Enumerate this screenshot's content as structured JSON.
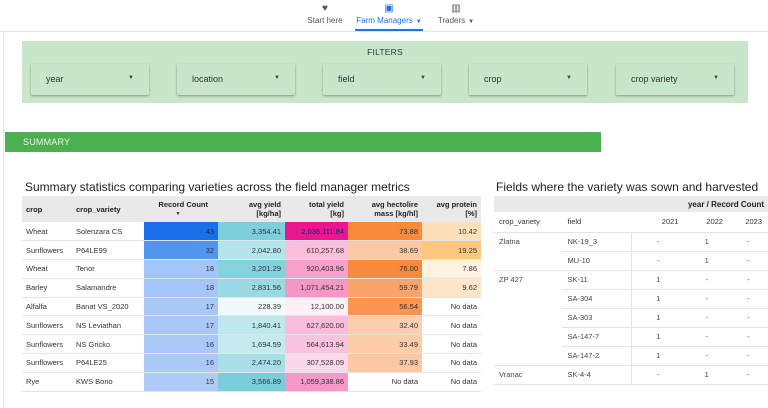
{
  "nav": {
    "items": [
      {
        "label": "Start here",
        "icon": "heart-icon",
        "glyph": "♥",
        "active": false,
        "dropdown": false
      },
      {
        "label": "Farm Managers",
        "icon": "farm-manager-icon",
        "glyph": "▣",
        "active": true,
        "dropdown": true
      },
      {
        "label": "Traders",
        "icon": "bar-chart-icon",
        "glyph": "▥",
        "active": false,
        "dropdown": true
      }
    ],
    "caret": "▼"
  },
  "filters": {
    "title": "FILTERS",
    "arrow": "▼",
    "selects": [
      {
        "label": "year"
      },
      {
        "label": "location"
      },
      {
        "label": "field"
      },
      {
        "label": "crop"
      },
      {
        "label": "crop variety"
      }
    ]
  },
  "summary": {
    "label": "SUMMARY",
    "color": "#4caf50"
  },
  "left_table": {
    "title": "Summary statistics comparing varieties across the field manager metrics",
    "columns": [
      "crop",
      "crop_variety",
      "Record Count",
      "avg yield [kg/ha]",
      "total yield [kg]",
      "avg hectolire mass [kg/hl]",
      "avg protein [%]"
    ],
    "col_lines": [
      [
        "crop"
      ],
      [
        "crop_variety"
      ],
      [
        "Record Count"
      ],
      [
        "avg yield",
        "[kg/ha]"
      ],
      [
        "total yield",
        "[kg]"
      ],
      [
        "avg hectolire",
        "mass [kg/hl]"
      ],
      [
        "avg protein",
        "[%]"
      ]
    ],
    "sort_indicator": "▼",
    "rows": [
      {
        "crop": "Wheat",
        "variety": "Solenzara CS",
        "count": "43",
        "avg_yield": "3,354.41",
        "total_yield": "2,036,111.84",
        "hectolitre": "73.88",
        "protein": "10.42",
        "colors": [
          "#1a6fe8",
          "#7dcfdc",
          "#e8168f",
          "#f98a3c",
          "#ffe0b8"
        ]
      },
      {
        "crop": "Sunflowers",
        "variety": "P64LE99",
        "count": "32",
        "avg_yield": "2,042.80",
        "total_yield": "610,257.68",
        "hectolitre": "38.69",
        "protein": "19.25",
        "colors": [
          "#5294ee",
          "#b5e5ec",
          "#fbbfdc",
          "#fcc9a6",
          "#fdc77e"
        ]
      },
      {
        "crop": "Wheat",
        "variety": "Tenor",
        "count": "18",
        "avg_yield": "3,201.29",
        "total_yield": "920,403.96",
        "hectolitre": "76.00",
        "protein": "7.86",
        "colors": [
          "#a5c5f8",
          "#85d2de",
          "#f89fcb",
          "#f98a3c",
          "#fff2e2"
        ]
      },
      {
        "crop": "Barley",
        "variety": "Salamandre",
        "count": "18",
        "avg_yield": "2,831.56",
        "total_yield": "1,071,454.21",
        "hectolitre": "59.79",
        "protein": "9.62",
        "colors": [
          "#a5c5f8",
          "#98d9e3",
          "#f697c7",
          "#faa46c",
          "#ffe6c9"
        ]
      },
      {
        "crop": "Alfalfa",
        "variety": "Banat VS_2020",
        "count": "17",
        "avg_yield": "228.39",
        "total_yield": "12,100.00",
        "hectolitre": "56.54",
        "protein": "No data",
        "colors": [
          "#a9c8f8",
          "#f1fafb",
          "#fdf1f7",
          "#fa9652",
          "#ffffff"
        ]
      },
      {
        "crop": "Sunflowers",
        "variety": "NS Leviathan",
        "count": "17",
        "avg_yield": "1,840.41",
        "total_yield": "627,620.00",
        "hectolitre": "32.40",
        "protein": "No data",
        "colors": [
          "#a9c8f8",
          "#bde8ee",
          "#fbbdda",
          "#fdcfb0",
          "#ffffff"
        ]
      },
      {
        "crop": "Sunflowers",
        "variety": "NS Gricko",
        "count": "16",
        "avg_yield": "1,694.59",
        "total_yield": "564,613.94",
        "hectolitre": "33.49",
        "protein": "No data",
        "colors": [
          "#abc9f8",
          "#c4eaf0",
          "#fbc4de",
          "#fdcdaa",
          "#ffffff"
        ]
      },
      {
        "crop": "Sunflowers",
        "variety": "P64LE25",
        "count": "16",
        "avg_yield": "2,474.20",
        "total_yield": "307,528.09",
        "hectolitre": "37.93",
        "protein": "No data",
        "colors": [
          "#abc9f8",
          "#a6dfe8",
          "#fcd8ea",
          "#fcc7a2",
          "#ffffff"
        ]
      },
      {
        "crop": "Rye",
        "variety": "KWS Bono",
        "count": "15",
        "avg_yield": "3,566.89",
        "total_yield": "1,059,338.86",
        "hectolitre": "No data",
        "protein": "No data",
        "colors": [
          "#aecbf8",
          "#7acdda",
          "#f698c8",
          "#ffffff",
          "#ffffff"
        ]
      }
    ]
  },
  "right_table": {
    "title": "Fields where the variety was sown and harvested",
    "group_header": "year / Record Count",
    "columns": [
      "crop_variety",
      "field",
      "2021",
      "2022",
      "2023"
    ],
    "rows": [
      {
        "variety": "Zlatna",
        "field": "NK-19_3",
        "y2021": "-",
        "y2022": "1",
        "y2023": "-"
      },
      {
        "variety": "",
        "field": "MU-10",
        "y2021": "-",
        "y2022": "1",
        "y2023": "-"
      },
      {
        "variety": "ZP 427",
        "field": "SK-11",
        "y2021": "1",
        "y2022": "-",
        "y2023": "-"
      },
      {
        "variety": "",
        "field": "SA-304",
        "y2021": "1",
        "y2022": "-",
        "y2023": "-"
      },
      {
        "variety": "",
        "field": "SA-303",
        "y2021": "1",
        "y2022": "-",
        "y2023": "-"
      },
      {
        "variety": "",
        "field": "SA-147-7",
        "y2021": "1",
        "y2022": "-",
        "y2023": "-"
      },
      {
        "variety": "",
        "field": "SA-147-2",
        "y2021": "1",
        "y2022": "-",
        "y2023": "-"
      },
      {
        "variety": "Vranac",
        "field": "SK-4-4",
        "y2021": "-",
        "y2022": "1",
        "y2023": "-"
      }
    ]
  }
}
